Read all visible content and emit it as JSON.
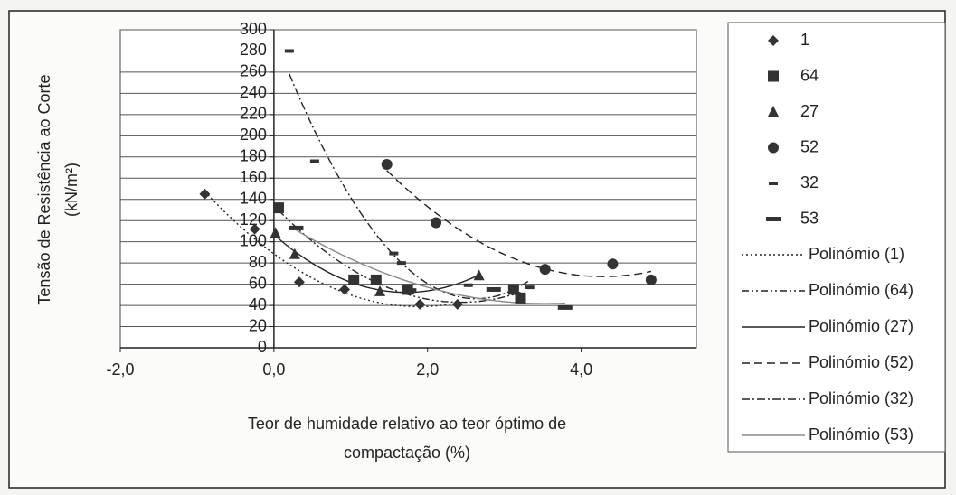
{
  "chart_data": {
    "type": "scatter",
    "ylabel": [
      "Tensão de Resistência ao Corte",
      "(kN/m²)"
    ],
    "xlabel": [
      "Teor de humidade relativo ao teor óptimo de",
      "compactação (%)"
    ],
    "xlim": [
      -2,
      5.5
    ],
    "xticks": [
      {
        "value": -2,
        "label": "-2,0"
      },
      {
        "value": 0,
        "label": "0,0"
      },
      {
        "value": 2,
        "label": "2,0"
      },
      {
        "value": 4,
        "label": "4,0"
      }
    ],
    "ylim": [
      0,
      300
    ],
    "yticks": [
      0,
      20,
      40,
      60,
      80,
      100,
      120,
      140,
      160,
      180,
      200,
      220,
      240,
      260,
      280,
      300
    ],
    "grid": true,
    "series": [
      {
        "name": "1",
        "marker": "diamond",
        "color": "#333333",
        "x": [
          -0.9,
          -0.25,
          0.33,
          0.92,
          1.9,
          2.39
        ],
        "values": [
          145,
          112,
          62,
          55,
          41,
          41
        ]
      },
      {
        "name": "64",
        "marker": "square",
        "color": "#333333",
        "x": [
          0.06,
          1.04,
          1.33,
          1.74,
          3.12,
          3.21
        ],
        "values": [
          132,
          64,
          64,
          55,
          55,
          47
        ]
      },
      {
        "name": "27",
        "marker": "triangle",
        "color": "#333333",
        "x": [
          0.02,
          0.27,
          1.38,
          1.76,
          2.67
        ],
        "values": [
          108,
          88,
          53,
          55,
          68
        ]
      },
      {
        "name": "52",
        "marker": "circle",
        "color": "#333333",
        "x": [
          1.47,
          2.11,
          3.53,
          4.41,
          4.91
        ],
        "values": [
          173,
          118,
          74,
          79,
          64
        ]
      },
      {
        "name": "32",
        "marker": "dash",
        "color": "#333333",
        "x": [
          0.2,
          0.53,
          1.56,
          1.66,
          2.53,
          3.33
        ],
        "values": [
          280,
          176,
          89,
          80,
          59,
          57
        ]
      },
      {
        "name": "53",
        "marker": "thickdash",
        "color": "#333333",
        "x": [
          0.29,
          1.76,
          2.86,
          3.79
        ],
        "values": [
          113,
          54,
          55,
          38
        ]
      }
    ],
    "trendlines": [
      {
        "name": "Polinómio (1)",
        "series": 0,
        "dash": "2,3",
        "color": "#222222"
      },
      {
        "name": "Polinómio (64)",
        "series": 1,
        "dash": "8,3,2,3,2,3",
        "color": "#222222"
      },
      {
        "name": "Polinómio (27)",
        "series": 2,
        "dash": "none",
        "color": "#222222"
      },
      {
        "name": "Polinómio (52)",
        "series": 3,
        "dash": "9,5",
        "color": "#222222"
      },
      {
        "name": "Polinómio (32)",
        "series": 4,
        "dash": "9,3,2,3",
        "color": "#222222"
      },
      {
        "name": "Polinómio (53)",
        "series": 5,
        "dash": "none",
        "color": "#888888"
      }
    ]
  }
}
